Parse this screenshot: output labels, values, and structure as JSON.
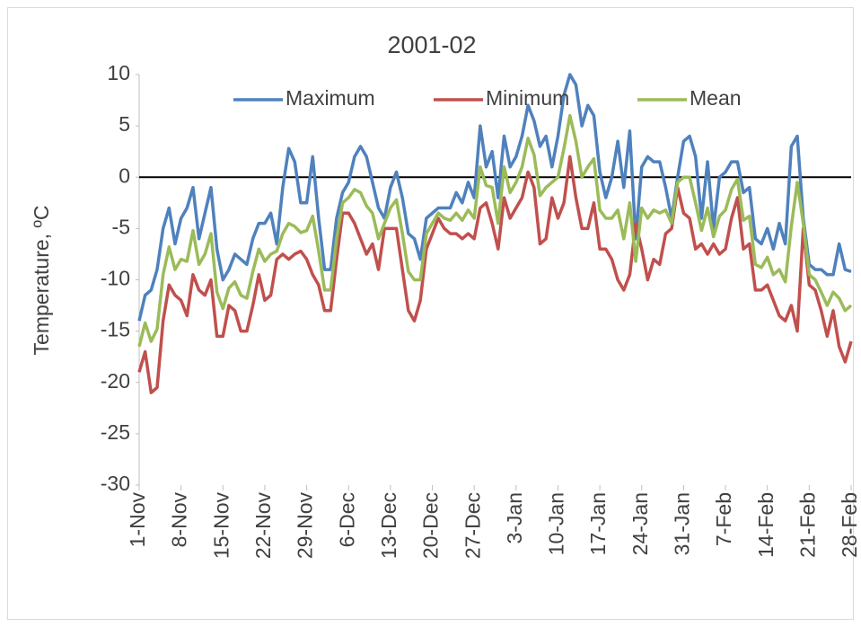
{
  "chart_data": {
    "type": "line",
    "title": "2001-02",
    "y_label": "Temperature, ºC",
    "categories": [
      "1-Nov",
      null,
      null,
      null,
      null,
      null,
      null,
      "8-Nov",
      null,
      null,
      null,
      null,
      null,
      null,
      "15-Nov",
      null,
      null,
      null,
      null,
      null,
      null,
      "22-Nov",
      null,
      null,
      null,
      null,
      null,
      null,
      "29-Nov",
      null,
      null,
      null,
      null,
      null,
      null,
      "6-Dec",
      null,
      null,
      null,
      null,
      null,
      null,
      "13-Dec",
      null,
      null,
      null,
      null,
      null,
      null,
      "20-Dec",
      null,
      null,
      null,
      null,
      null,
      null,
      "27-Dec",
      null,
      null,
      null,
      null,
      null,
      null,
      "3-Jan",
      null,
      null,
      null,
      null,
      null,
      null,
      "10-Jan",
      null,
      null,
      null,
      null,
      null,
      null,
      "17-Jan",
      null,
      null,
      null,
      null,
      null,
      null,
      "24-Jan",
      null,
      null,
      null,
      null,
      null,
      null,
      "31-Jan",
      null,
      null,
      null,
      null,
      null,
      null,
      "7-Feb",
      null,
      null,
      null,
      null,
      null,
      null,
      "14-Feb",
      null,
      null,
      null,
      null,
      null,
      null,
      "21-Feb",
      null,
      null,
      null,
      null,
      null,
      null,
      "28-Feb"
    ],
    "series": [
      {
        "name": "Maximum",
        "color": "#4f81bd",
        "values": [
          -14,
          -11.5,
          -11,
          -9,
          -5,
          -3,
          -6.5,
          -4,
          -3,
          -1,
          -6,
          -3.5,
          -1,
          -7,
          -10,
          -9,
          -7.5,
          -8,
          -8.5,
          -6,
          -4.5,
          -4.5,
          -3.5,
          -6.5,
          -1,
          2.8,
          1.5,
          -2.5,
          -2.5,
          2,
          -4,
          -9,
          -9,
          -4,
          -1.5,
          -0.5,
          2,
          3,
          2,
          -0.5,
          -3,
          -4,
          -1,
          0.5,
          -2,
          -5.5,
          -6,
          -8,
          -4,
          -3.5,
          -3,
          -3,
          -3,
          -1.5,
          -2.5,
          -0.5,
          -2,
          5,
          1,
          2.5,
          -2,
          4,
          1,
          2,
          4,
          7,
          5.5,
          3,
          4,
          1,
          4,
          8,
          10,
          9,
          5,
          7,
          6,
          0.5,
          -2,
          0,
          3.5,
          -1,
          4.5,
          -6,
          1,
          2,
          1.5,
          1.5,
          -1,
          -4,
          0,
          3.5,
          4,
          2,
          -4,
          1.5,
          -5,
          0,
          0.5,
          1.5,
          1.5,
          -1.5,
          -1,
          -6,
          -6.5,
          -5,
          -7,
          -4.5,
          -6.5,
          3,
          4,
          -4,
          -8.5,
          -9,
          -9,
          -9.5,
          -9.5,
          -6.5,
          -9,
          -9.2
        ]
      },
      {
        "name": "Minimum",
        "color": "#c0504d",
        "values": [
          -19,
          -17,
          -21,
          -20.5,
          -14,
          -10.5,
          -11.5,
          -12,
          -13.5,
          -9.5,
          -11,
          -11.5,
          -10,
          -15.5,
          -15.5,
          -12.5,
          -13,
          -15,
          -15,
          -12.5,
          -9.5,
          -12,
          -11.5,
          -8,
          -7.5,
          -8,
          -7.5,
          -7.2,
          -8,
          -9.5,
          -10.5,
          -13,
          -13,
          -8,
          -3.5,
          -3.5,
          -4.5,
          -6,
          -7.5,
          -6.5,
          -9,
          -5,
          -5,
          -5,
          -9,
          -13,
          -14,
          -12,
          -7,
          -5.5,
          -4,
          -5,
          -5.5,
          -5.5,
          -6,
          -5.5,
          -6,
          -3,
          -2.5,
          -4.5,
          -7,
          -2,
          -4,
          -3,
          -2,
          0.5,
          -1,
          -6.5,
          -6,
          -2,
          -4,
          -2.5,
          2,
          -2,
          -5,
          -5,
          -2.5,
          -7,
          -7,
          -8,
          -10,
          -11,
          -9.5,
          -4.5,
          -7,
          -10,
          -8,
          -8.5,
          -5.5,
          -5,
          -1,
          -3.5,
          -4,
          -7,
          -6.5,
          -7.5,
          -6.5,
          -7.5,
          -7,
          -4,
          -2,
          -7,
          -6.5,
          -11,
          -11,
          -10.5,
          -12,
          -13.5,
          -14,
          -12.5,
          -15,
          -5,
          -10.5,
          -11,
          -13,
          -15.5,
          -13,
          -16.5,
          -18,
          -16
        ]
      },
      {
        "name": "Mean",
        "color": "#9bbb59",
        "values": [
          -16.5,
          -14.2,
          -16,
          -14.8,
          -9.5,
          -6.8,
          -9,
          -8,
          -8.2,
          -5.2,
          -8.5,
          -7.5,
          -5.5,
          -11.2,
          -12.8,
          -10.8,
          -10.2,
          -11.5,
          -11.8,
          -9.2,
          -7,
          -8.2,
          -7.5,
          -7.2,
          -5.5,
          -4.5,
          -4.8,
          -5.4,
          -5.2,
          -3.8,
          -7.2,
          -11,
          -11,
          -6,
          -2.5,
          -2,
          -1.2,
          -1.5,
          -2.8,
          -3.5,
          -6,
          -4.5,
          -3,
          -2.2,
          -5.5,
          -9.2,
          -10,
          -10,
          -5.5,
          -4.5,
          -3.5,
          -4,
          -4.2,
          -3.5,
          -4.2,
          -3.2,
          -4,
          1,
          -0.8,
          -1,
          -4.5,
          1,
          -1.5,
          -0.5,
          1,
          3.8,
          2.2,
          -1.8,
          -1,
          -0.5,
          0,
          2.8,
          6,
          3.5,
          0,
          1,
          1.8,
          -3.2,
          -4,
          -4,
          -3.2,
          -6,
          -2.5,
          -8.2,
          -3,
          -4,
          -3.2,
          -3.5,
          -3.2,
          -4.5,
          -0.5,
          0,
          0,
          -2.5,
          -5.2,
          -3,
          -5.8,
          -3.8,
          -3.2,
          -1.2,
          -0.2,
          -4.2,
          -3.8,
          -8.5,
          -8.8,
          -7.8,
          -9.5,
          -9,
          -10.2,
          -4.8,
          -0.5,
          -4.5,
          -9.5,
          -10,
          -11.2,
          -12.5,
          -11.2,
          -11.8,
          -13,
          -12.5
        ]
      }
    ],
    "ylim": [
      -30,
      10
    ],
    "yticks": [
      -30,
      -25,
      -20,
      -15,
      -10,
      -5,
      0,
      5,
      10
    ],
    "grid": false
  }
}
